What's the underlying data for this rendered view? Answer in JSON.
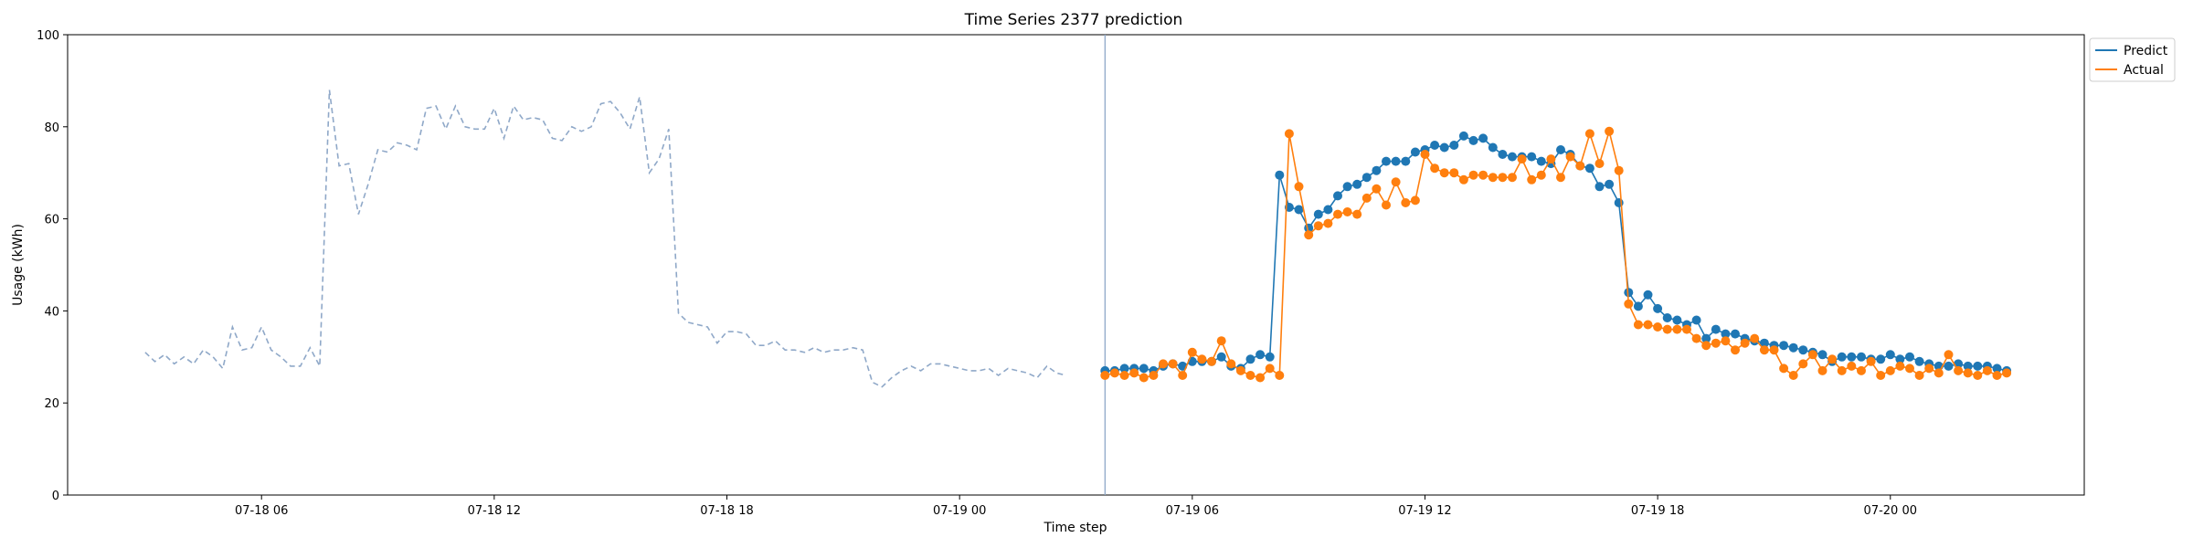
{
  "chart_data": {
    "type": "line",
    "title": "Time Series 2377 prediction",
    "xlabel": "Time step",
    "ylabel": "Usage (kWh)",
    "ylim": [
      0,
      100
    ],
    "xlim": [
      "2024-07-18 01:00",
      "2024-07-20 05:00"
    ],
    "grid": false,
    "legend_position": "top-right outside",
    "x_ticks": [
      "07-18 06",
      "07-18 12",
      "07-18 18",
      "07-19 00",
      "07-19 06",
      "07-19 12",
      "07-19 18",
      "07-20 00"
    ],
    "y_ticks": [
      0,
      20,
      40,
      60,
      80,
      100
    ],
    "forecast_start": "2024-07-19 03:45",
    "history": {
      "style": "dashed",
      "color": "#8fa8c8",
      "start": "2024-07-18 03:00",
      "interval_minutes": 15,
      "values": [
        31,
        29,
        30.5,
        28.5,
        30,
        28.5,
        31.5,
        30,
        27.5,
        36.5,
        31.5,
        32,
        36.5,
        31.5,
        30,
        28,
        28,
        32,
        28,
        88,
        71.5,
        72,
        61,
        67.5,
        75,
        74.5,
        76.5,
        76,
        75,
        84,
        84.5,
        79.5,
        84.5,
        80,
        79.5,
        79.5,
        84,
        77.5,
        84.5,
        81.5,
        82,
        81.5,
        77.5,
        77,
        80,
        79,
        80,
        85,
        85.5,
        83,
        79.5,
        86.5,
        70,
        73,
        79.5,
        39.5,
        37.5,
        37,
        36.5,
        33,
        35.5,
        35.5,
        35,
        32.5,
        32.5,
        33.5,
        31.5,
        31.5,
        31,
        32,
        31,
        31.5,
        31.5,
        32,
        31.5,
        24.5,
        23.5,
        25.5,
        27,
        28,
        27,
        28.5,
        28.5,
        28,
        27.5,
        27,
        27,
        27.5,
        26,
        27.5,
        27,
        26.5,
        25.5,
        28,
        26.5,
        26
      ]
    },
    "series": [
      {
        "name": "Predict",
        "color": "#1f77b4",
        "start": "2024-07-19 03:45",
        "interval_minutes": 15,
        "values": [
          27,
          27,
          27.5,
          27.5,
          27.5,
          27,
          28,
          28.5,
          28,
          29,
          29,
          29,
          30,
          28,
          27.5,
          29.5,
          30.5,
          30,
          69.5,
          62.5,
          62,
          58,
          61,
          62,
          65,
          67,
          67.5,
          69,
          70.5,
          72.5,
          72.5,
          72.5,
          74.5,
          75,
          76,
          75.5,
          76,
          78,
          77,
          77.5,
          75.5,
          74,
          73.5,
          73.5,
          73.5,
          72.5,
          72,
          75,
          74,
          71.5,
          71,
          67,
          67.5,
          63.5,
          44,
          41,
          43.5,
          40.5,
          38.5,
          38,
          37,
          38,
          34,
          36,
          35,
          35,
          34,
          33.5,
          33,
          32.5,
          32.5,
          32,
          31.5,
          31,
          30.5,
          29,
          30,
          30,
          30,
          29.5,
          29.5,
          30.5,
          29.5,
          30,
          29,
          28.5,
          28,
          28,
          28.5,
          28,
          28,
          28,
          27.5,
          27
        ]
      },
      {
        "name": "Actual",
        "color": "#ff7f0e",
        "start": "2024-07-19 03:45",
        "interval_minutes": 15,
        "values": [
          26,
          26.5,
          26,
          26.5,
          25.5,
          26,
          28.5,
          28.5,
          26,
          31,
          29.5,
          29,
          33.5,
          28.5,
          27,
          26,
          25.5,
          27.5,
          26,
          78.5,
          67,
          56.5,
          58.5,
          59,
          61,
          61.5,
          61,
          64.5,
          66.5,
          63,
          68,
          63.5,
          64,
          74,
          71,
          70,
          70,
          68.5,
          69.5,
          69.5,
          69,
          69,
          69,
          73,
          68.5,
          69.5,
          73,
          69,
          73.5,
          71.5,
          78.5,
          72,
          79,
          70.5,
          41.5,
          37,
          37,
          36.5,
          36,
          36,
          36,
          34,
          32.5,
          33,
          33.5,
          31.5,
          33,
          34,
          31.5,
          31.5,
          27.5,
          26,
          28.5,
          30.5,
          27,
          29.5,
          27,
          28,
          27,
          29,
          26,
          27,
          28,
          27.5,
          26,
          27.5,
          26.5,
          30.5,
          27,
          26.5,
          26,
          27,
          26,
          26.5
        ]
      }
    ]
  }
}
